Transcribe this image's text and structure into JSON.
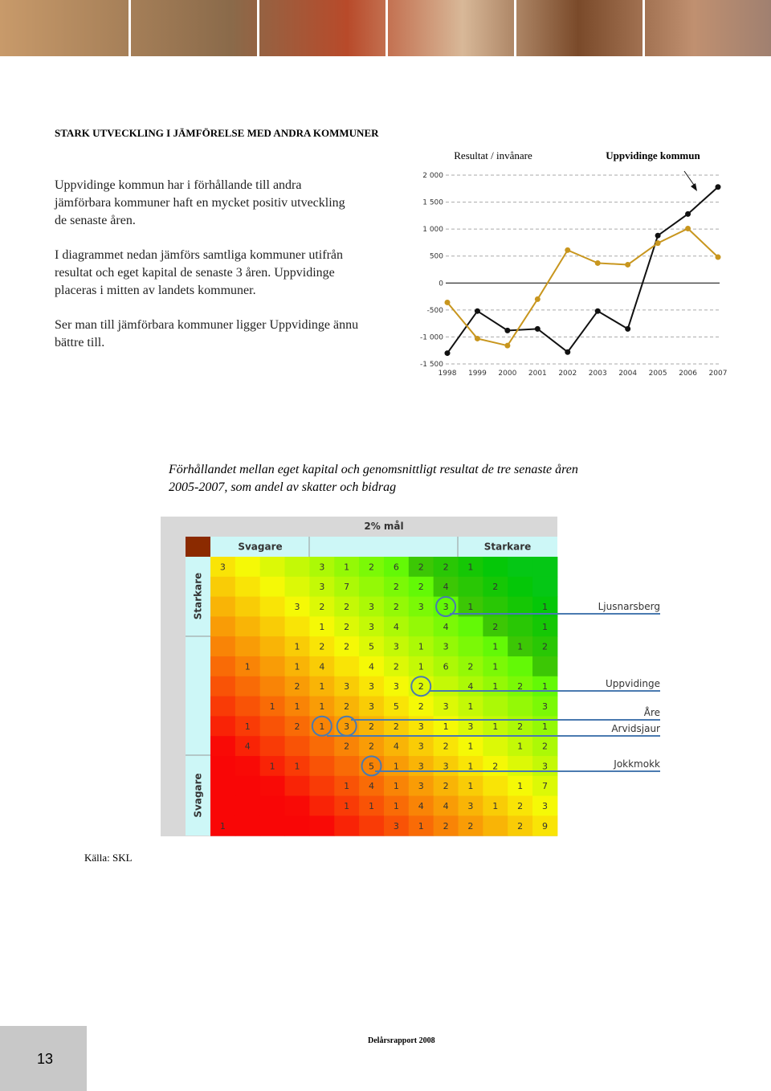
{
  "heading": "STARK UTVECKLING I JÄMFÖRELSE MED ANDRA KOMMUNER",
  "paragraphs": [
    "Uppvidinge kommun har i förhållande till andra jämförbara kommuner haft en mycket positiv utveckling de senaste åren.",
    "I diagrammet nedan jämförs samtliga kommuner utifrån resultat och eget kapital de senaste 3 åren. Uppvidinge placeras i mitten av landets kommuner.",
    "Ser man till jämförbara kommuner ligger Uppvidinge ännu bättre till."
  ],
  "chart_data": {
    "type": "line",
    "title": "Resultat / invånare",
    "categories": [
      "1998",
      "1999",
      "2000",
      "2001",
      "2002",
      "2003",
      "2004",
      "2005",
      "2006",
      "2007"
    ],
    "series": [
      {
        "name": "Uppvidinge kommun",
        "color": "#111111",
        "values": [
          -1300,
          -520,
          -880,
          -850,
          -1280,
          -520,
          -850,
          880,
          1280,
          1780
        ]
      },
      {
        "color": "#c8961e",
        "values": [
          -360,
          -1030,
          -1160,
          -300,
          610,
          370,
          340,
          740,
          1010,
          480
        ]
      }
    ],
    "ylim": [
      -1500,
      2000
    ],
    "yticks": [
      {
        "value": -1500,
        "label": "-1 500"
      },
      {
        "value": -1000,
        "label": "-1 000"
      },
      {
        "value": -500,
        "label": "-500"
      },
      0,
      500,
      {
        "value": 1000,
        "label": "1 000"
      },
      {
        "value": 1500,
        "label": "1 500"
      },
      {
        "value": 2000,
        "label": "2 000"
      }
    ],
    "grid": true
  },
  "caption": "Förhållandet mellan eget kapital och genomsnittligt resultat de tre senaste åren 2005-2007, som andel av skatter och bidrag",
  "heatmap": {
    "title": "2% mål",
    "col_groups": [
      "Svagare",
      "Starkare"
    ],
    "row_groups": [
      "Starkare",
      "Svagare"
    ],
    "rows": [
      [
        3,
        null,
        null,
        null,
        3,
        1,
        2,
        6,
        2,
        2,
        1,
        null,
        null,
        null
      ],
      [
        null,
        null,
        null,
        null,
        3,
        7,
        null,
        2,
        2,
        4,
        null,
        2,
        null,
        null
      ],
      [
        null,
        null,
        null,
        3,
        2,
        2,
        3,
        2,
        3,
        3,
        1,
        null,
        null,
        1
      ],
      [
        null,
        null,
        null,
        null,
        1,
        2,
        3,
        4,
        null,
        4,
        null,
        2,
        null,
        1
      ],
      [
        null,
        null,
        null,
        1,
        2,
        2,
        5,
        3,
        1,
        3,
        null,
        1,
        1,
        2
      ],
      [
        null,
        1,
        null,
        1,
        4,
        null,
        4,
        2,
        1,
        6,
        2,
        1,
        null,
        null
      ],
      [
        null,
        null,
        null,
        2,
        1,
        3,
        3,
        3,
        2,
        null,
        4,
        1,
        2,
        1
      ],
      [
        null,
        null,
        1,
        1,
        1,
        2,
        3,
        5,
        2,
        3,
        1,
        null,
        null,
        3
      ],
      [
        null,
        1,
        null,
        2,
        1,
        3,
        2,
        2,
        3,
        1,
        3,
        1,
        2,
        1
      ],
      [
        null,
        4,
        null,
        null,
        null,
        2,
        2,
        4,
        3,
        2,
        1,
        null,
        1,
        2
      ],
      [
        null,
        null,
        1,
        1,
        null,
        null,
        5,
        1,
        3,
        3,
        1,
        2,
        null,
        3
      ],
      [
        null,
        null,
        null,
        null,
        null,
        1,
        4,
        1,
        3,
        2,
        1,
        null,
        1,
        7
      ],
      [
        null,
        null,
        null,
        null,
        null,
        1,
        1,
        1,
        4,
        4,
        3,
        1,
        2,
        3
      ],
      [
        1,
        null,
        null,
        null,
        null,
        null,
        null,
        3,
        1,
        2,
        2,
        null,
        2,
        9
      ]
    ],
    "annotations": [
      "Ljusnarsberg",
      "Uppvidinge",
      "Åre",
      "Arvidsjaur",
      "Jokkmokk"
    ]
  },
  "source": "Källa: SKL",
  "page_number": "13",
  "footer": "Delårsrapport 2008"
}
